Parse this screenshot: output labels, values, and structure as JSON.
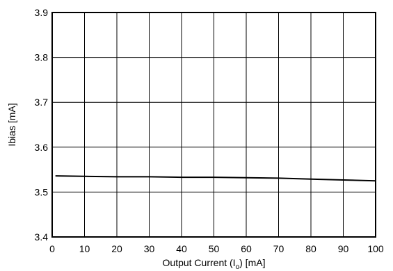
{
  "chart_data": {
    "type": "line",
    "title": "",
    "xlabel": {
      "prefix": "Output Current (I",
      "sub": "o",
      "suffix": ") [mA]"
    },
    "ylabel": "Ibias [mA]",
    "xlim": [
      0,
      100
    ],
    "ylim": [
      3.4,
      3.9
    ],
    "x_ticks": [
      0,
      10,
      20,
      30,
      40,
      50,
      60,
      70,
      80,
      90,
      100
    ],
    "x_tick_labels": [
      "0",
      "10",
      "20",
      "30",
      "40",
      "50",
      "60",
      "70",
      "80",
      "90",
      "100"
    ],
    "y_ticks": [
      3.4,
      3.5,
      3.6,
      3.7,
      3.8,
      3.9
    ],
    "y_tick_labels": [
      "3.4",
      "3.5",
      "3.6",
      "3.7",
      "3.8",
      "3.9"
    ],
    "grid": true,
    "series": [
      {
        "color": "#000000",
        "x": [
          1,
          10,
          20,
          30,
          40,
          50,
          60,
          70,
          80,
          90,
          100
        ],
        "y": [
          3.536,
          3.535,
          3.534,
          3.534,
          3.533,
          3.533,
          3.532,
          3.531,
          3.529,
          3.527,
          3.525
        ]
      }
    ]
  }
}
